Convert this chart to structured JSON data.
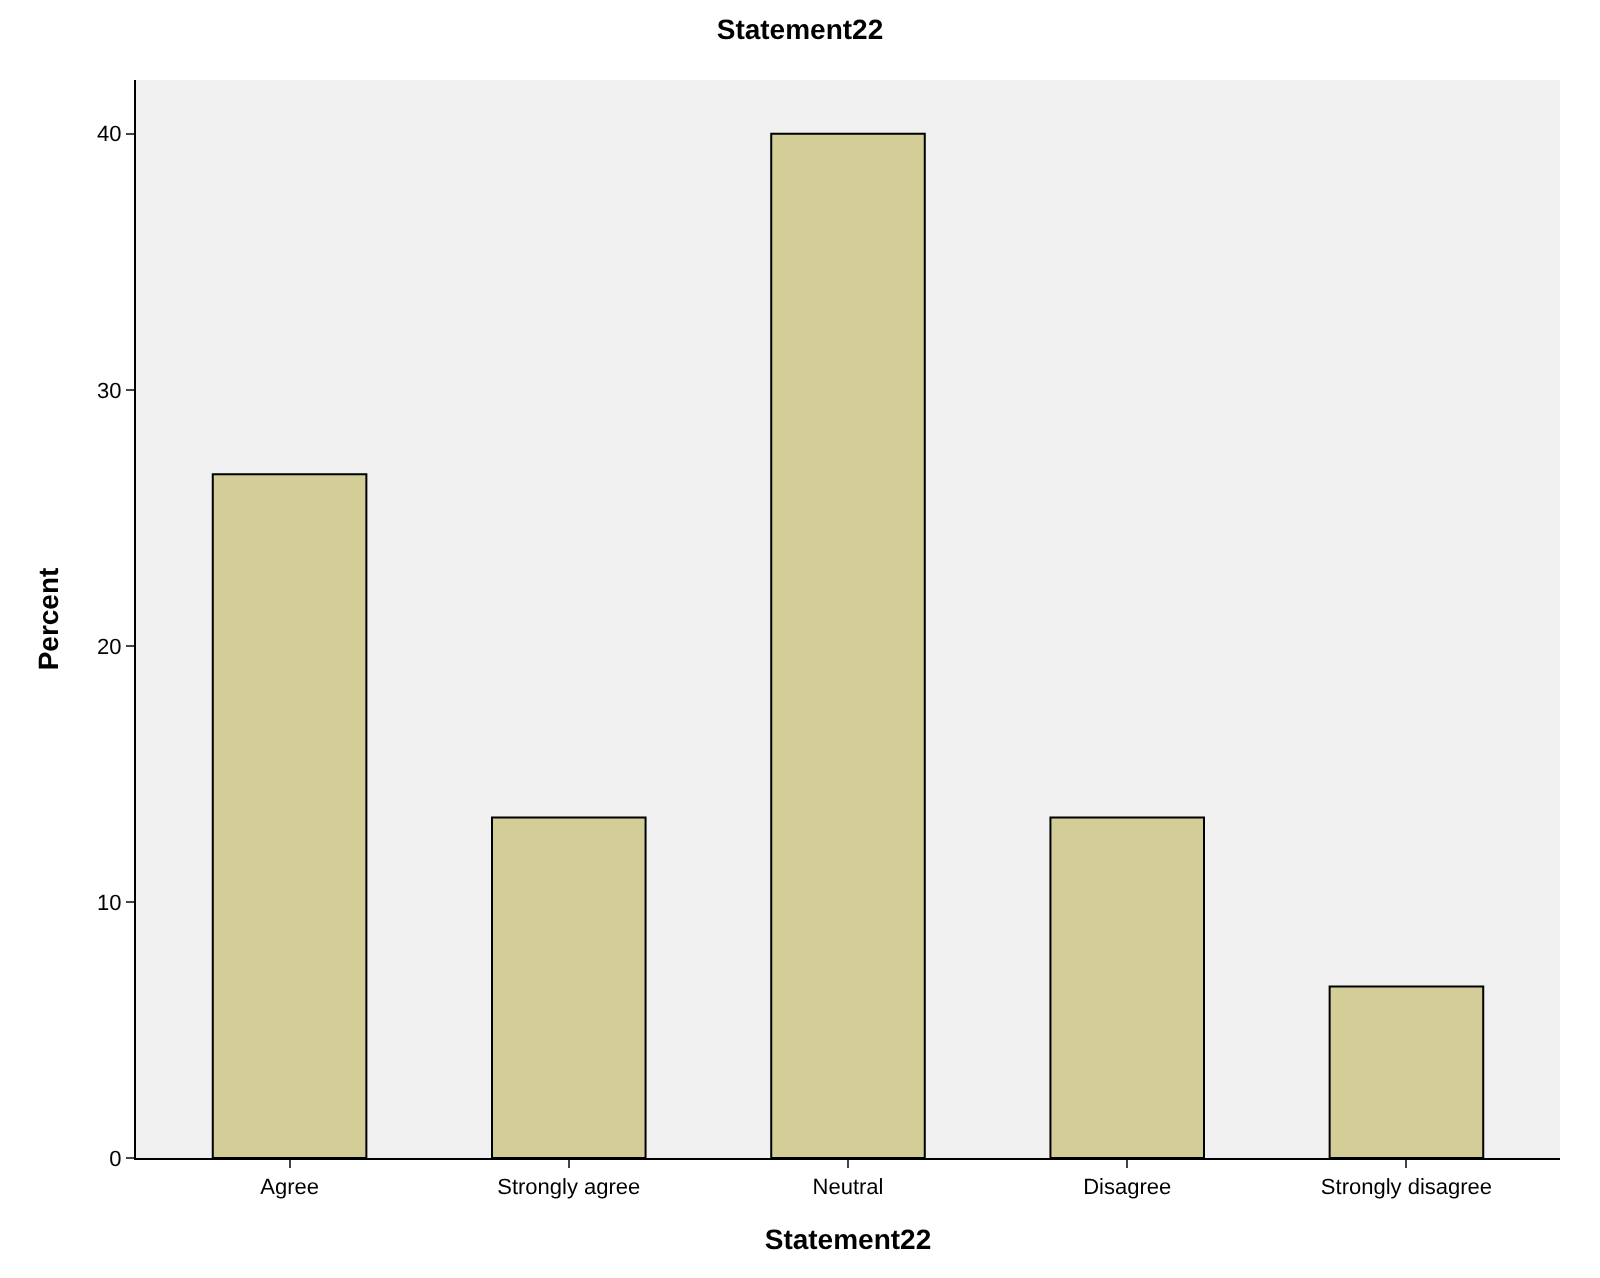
{
  "chart_data": {
    "type": "bar",
    "title": "Statement22",
    "xlabel": "Statement22",
    "ylabel": "Percent",
    "categories": [
      "Agree",
      "Strongly agree",
      "Neutral",
      "Disagree",
      "Strongly disagree"
    ],
    "values": [
      26.7,
      13.3,
      40,
      13.3,
      6.7
    ],
    "color": "#d3ce97",
    "ylim": [
      0,
      42.1
    ],
    "yticks": [
      0,
      10,
      20,
      30,
      40
    ],
    "grid": false
  }
}
